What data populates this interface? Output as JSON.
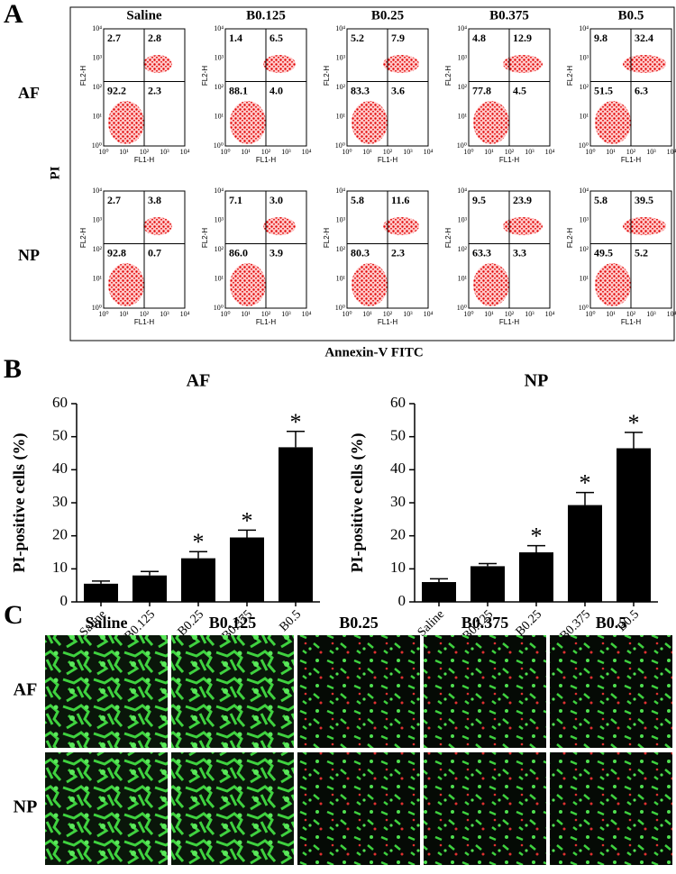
{
  "panel_a": {
    "label": "A",
    "columns": [
      "Saline",
      "B0.125",
      "B0.25",
      "B0.375",
      "B0.5"
    ],
    "y_title": "PI",
    "x_title": "Annexin-V FITC",
    "x_axis_label": "FL1-H",
    "y_axis_label": "FL2-H",
    "log_ticks": [
      "10⁰",
      "10¹",
      "10²",
      "10³",
      "10⁴"
    ],
    "rows": [
      {
        "label": "AF",
        "quadrants": [
          [
            "2.7",
            "2.8",
            "92.2",
            "2.3"
          ],
          [
            "1.4",
            "6.5",
            "88.1",
            "4.0"
          ],
          [
            "5.2",
            "7.9",
            "83.3",
            "3.6"
          ],
          [
            "4.8",
            "12.9",
            "77.8",
            "4.5"
          ],
          [
            "9.8",
            "32.4",
            "51.5",
            "6.3"
          ]
        ]
      },
      {
        "label": "NP",
        "quadrants": [
          [
            "2.7",
            "3.8",
            "92.8",
            "0.7"
          ],
          [
            "7.1",
            "3.0",
            "86.0",
            "3.9"
          ],
          [
            "5.8",
            "11.6",
            "80.3",
            "2.3"
          ],
          [
            "9.5",
            "23.9",
            "63.3",
            "3.3"
          ],
          [
            "5.8",
            "39.5",
            "49.5",
            "5.2"
          ]
        ]
      }
    ]
  },
  "panel_b": {
    "label": "B"
  },
  "chart_data": [
    {
      "type": "bar",
      "title": "AF",
      "ylabel": "PI-positive cells (%)",
      "categories": [
        "Saline",
        "B0.125",
        "B0.25",
        "B0.375",
        "B0.5"
      ],
      "values": [
        5.5,
        8,
        13.2,
        19.5,
        46.8
      ],
      "errors": [
        0.8,
        1.2,
        2,
        2.2,
        4.8
      ],
      "color": "#000000",
      "significant": [
        false,
        false,
        true,
        true,
        true
      ],
      "significance_label": "*",
      "ylim": [
        0,
        60
      ],
      "yticks": [
        0,
        10,
        20,
        30,
        40,
        50,
        60
      ]
    },
    {
      "type": "bar",
      "title": "NP",
      "ylabel": "PI-positive cells (%)",
      "categories": [
        "Saline",
        "B0.125",
        "B0.25",
        "B0.375",
        "B0.5"
      ],
      "values": [
        6,
        10.8,
        15,
        29.3,
        46.5
      ],
      "errors": [
        1,
        0.8,
        2,
        3.8,
        4.8
      ],
      "color": "#000000",
      "significant": [
        false,
        false,
        true,
        true,
        true
      ],
      "significance_label": "*",
      "ylim": [
        0,
        60
      ],
      "yticks": [
        0,
        10,
        20,
        30,
        40,
        50,
        60
      ]
    }
  ],
  "panel_c": {
    "label": "C",
    "columns": [
      "Saline",
      "B0.125",
      "B0.25",
      "B0.375",
      "B0.5"
    ],
    "rows": [
      "AF",
      "NP"
    ]
  }
}
